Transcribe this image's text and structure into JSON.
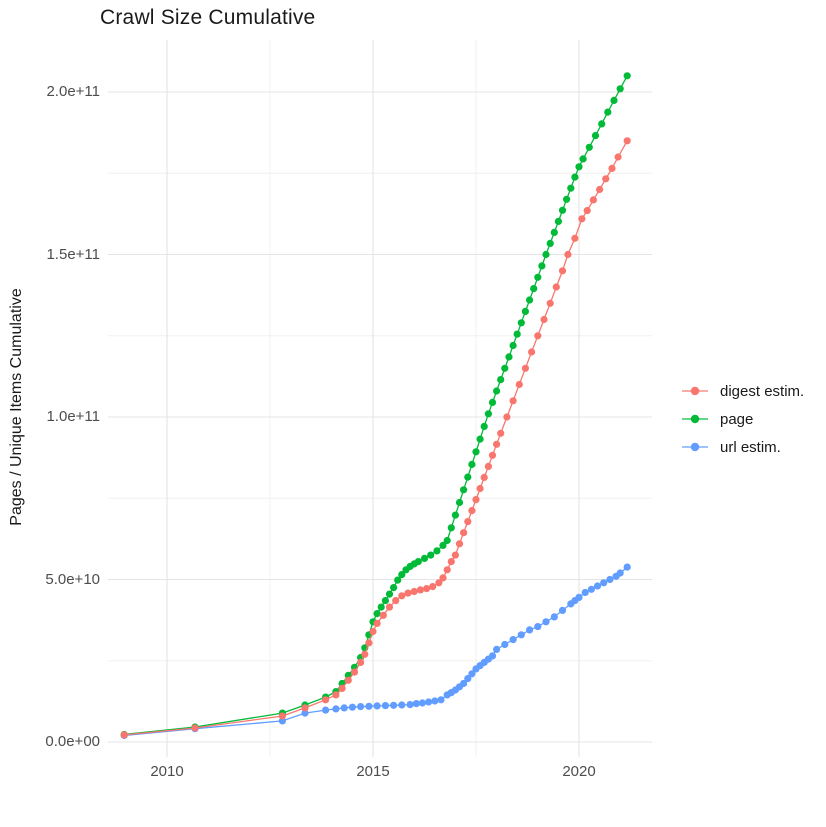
{
  "title": "Crawl Size Cumulative",
  "y_axis": {
    "label": "Pages / Unique Items Cumulative",
    "tick_labels": [
      "0.0e+00",
      "5.0e+10",
      "1.0e+11",
      "1.5e+11",
      "2.0e+11"
    ]
  },
  "x_axis": {
    "tick_labels": [
      "2010",
      "2015",
      "2020"
    ]
  },
  "legend": [
    {
      "label": "digest estim.",
      "color": "#F8766D"
    },
    {
      "label": "page",
      "color": "#00BA38"
    },
    {
      "label": "url estim.",
      "color": "#619CFF"
    }
  ],
  "colors": {
    "digest": "#F8766D",
    "page": "#00BA38",
    "url": "#619CFF",
    "grid_major": "#e4e4e4",
    "grid_minor": "#f0f0f0",
    "tick_text": "#4d4d4d",
    "title_text": "#1a1a1a"
  },
  "chart_data": {
    "type": "scatter",
    "title": "Crawl Size Cumulative",
    "xlabel": "",
    "ylabel": "Pages / Unique Items Cumulative",
    "x_unit": "year",
    "value_scale": "points store [year, items_in_billions]; 1 billion = 1e9",
    "xlim": [
      2008.3,
      2021.8
    ],
    "ylim_billions": [
      -4,
      216
    ],
    "x_ticks": [
      2010,
      2015,
      2020
    ],
    "x_minor_ticks": [
      2012.5,
      2017.5
    ],
    "y_ticks_billions": [
      0,
      50,
      100,
      150,
      200
    ],
    "y_minor_ticks_billions": [
      25,
      75,
      125,
      175
    ],
    "y_tick_labels": [
      "0.0e+00",
      "5.0e+10",
      "1.0e+11",
      "1.5e+11",
      "2.0e+11"
    ],
    "grid": "major+minor",
    "legend_position": "right",
    "draw_order": [
      "url estim.",
      "page",
      "digest estim."
    ],
    "series": [
      {
        "name": "digest estim.",
        "color": "#F8766D",
        "points_year_billions": [
          [
            2008.96,
            2.2
          ],
          [
            2010.68,
            4.3
          ],
          [
            2012.8,
            8.0
          ],
          [
            2013.35,
            10.5
          ],
          [
            2013.85,
            13.0
          ],
          [
            2014.1,
            14.5
          ],
          [
            2014.25,
            16.5
          ],
          [
            2014.4,
            19
          ],
          [
            2014.55,
            21.5
          ],
          [
            2014.7,
            24.5
          ],
          [
            2014.8,
            27
          ],
          [
            2014.9,
            30.5
          ],
          [
            2015.0,
            34
          ],
          [
            2015.1,
            36.5
          ],
          [
            2015.25,
            39
          ],
          [
            2015.4,
            41.5
          ],
          [
            2015.55,
            43.5
          ],
          [
            2015.7,
            45
          ],
          [
            2015.85,
            45.8
          ],
          [
            2016.0,
            46.3
          ],
          [
            2016.15,
            46.8
          ],
          [
            2016.3,
            47.2
          ],
          [
            2016.45,
            47.8
          ],
          [
            2016.6,
            49
          ],
          [
            2016.7,
            50.5
          ],
          [
            2016.8,
            53
          ],
          [
            2016.9,
            55.5
          ],
          [
            2017.0,
            57.5
          ],
          [
            2017.1,
            61
          ],
          [
            2017.2,
            64.4
          ],
          [
            2017.3,
            67.8
          ],
          [
            2017.4,
            71.2
          ],
          [
            2017.5,
            74.6
          ],
          [
            2017.6,
            78
          ],
          [
            2017.7,
            81.4
          ],
          [
            2017.8,
            84.8
          ],
          [
            2017.9,
            88.2
          ],
          [
            2018.0,
            91.6
          ],
          [
            2018.1,
            95
          ],
          [
            2018.25,
            100
          ],
          [
            2018.4,
            105
          ],
          [
            2018.55,
            110
          ],
          [
            2018.7,
            115
          ],
          [
            2018.85,
            120
          ],
          [
            2019.0,
            125
          ],
          [
            2019.15,
            130
          ],
          [
            2019.3,
            135
          ],
          [
            2019.45,
            140
          ],
          [
            2019.6,
            145
          ],
          [
            2019.73,
            150
          ],
          [
            2019.9,
            155
          ],
          [
            2020.07,
            161
          ],
          [
            2020.2,
            163.5
          ],
          [
            2020.35,
            166.8
          ],
          [
            2020.5,
            170
          ],
          [
            2020.65,
            173.3
          ],
          [
            2020.8,
            176.5
          ],
          [
            2020.95,
            180
          ],
          [
            2021.17,
            185
          ]
        ]
      },
      {
        "name": "page",
        "color": "#00BA38",
        "points_year_billions": [
          [
            2008.96,
            2.3
          ],
          [
            2010.68,
            4.6
          ],
          [
            2012.8,
            8.9
          ],
          [
            2013.35,
            11.4
          ],
          [
            2013.85,
            13.8
          ],
          [
            2014.1,
            15.5
          ],
          [
            2014.25,
            18
          ],
          [
            2014.4,
            20.5
          ],
          [
            2014.55,
            23
          ],
          [
            2014.7,
            26
          ],
          [
            2014.8,
            29
          ],
          [
            2014.9,
            33
          ],
          [
            2015.0,
            37
          ],
          [
            2015.1,
            39.5
          ],
          [
            2015.2,
            41.5
          ],
          [
            2015.3,
            43.5
          ],
          [
            2015.4,
            45.5
          ],
          [
            2015.5,
            47.5
          ],
          [
            2015.6,
            49.8
          ],
          [
            2015.7,
            51.5
          ],
          [
            2015.8,
            53
          ],
          [
            2015.9,
            54
          ],
          [
            2016.0,
            54.8
          ],
          [
            2016.1,
            55.5
          ],
          [
            2016.25,
            56.5
          ],
          [
            2016.4,
            57.5
          ],
          [
            2016.55,
            58.8
          ],
          [
            2016.7,
            60.5
          ],
          [
            2016.8,
            62
          ],
          [
            2016.9,
            65.9
          ],
          [
            2017.0,
            69.8
          ],
          [
            2017.1,
            73.7
          ],
          [
            2017.2,
            77.6
          ],
          [
            2017.3,
            81.5
          ],
          [
            2017.4,
            85.4
          ],
          [
            2017.5,
            89.3
          ],
          [
            2017.6,
            93.2
          ],
          [
            2017.7,
            97.1
          ],
          [
            2017.8,
            101
          ],
          [
            2017.9,
            104.5
          ],
          [
            2018.0,
            108
          ],
          [
            2018.1,
            111.5
          ],
          [
            2018.2,
            115
          ],
          [
            2018.3,
            118.5
          ],
          [
            2018.4,
            122
          ],
          [
            2018.5,
            125.5
          ],
          [
            2018.6,
            129
          ],
          [
            2018.7,
            132.5
          ],
          [
            2018.8,
            136
          ],
          [
            2018.9,
            139.5
          ],
          [
            2019.0,
            143
          ],
          [
            2019.1,
            146.5
          ],
          [
            2019.2,
            150
          ],
          [
            2019.3,
            153.4
          ],
          [
            2019.4,
            156.8
          ],
          [
            2019.5,
            160.2
          ],
          [
            2019.6,
            163.6
          ],
          [
            2019.7,
            167
          ],
          [
            2019.8,
            170.4
          ],
          [
            2019.9,
            173.8
          ],
          [
            2020.0,
            177
          ],
          [
            2020.1,
            179.4
          ],
          [
            2020.25,
            183
          ],
          [
            2020.4,
            186.6
          ],
          [
            2020.55,
            190.2
          ],
          [
            2020.7,
            193.8
          ],
          [
            2020.85,
            197.4
          ],
          [
            2021.0,
            201
          ],
          [
            2021.17,
            205
          ]
        ]
      },
      {
        "name": "url estim.",
        "color": "#619CFF",
        "points_year_billions": [
          [
            2008.96,
            2.0
          ],
          [
            2010.68,
            4.1
          ],
          [
            2012.8,
            6.5
          ],
          [
            2013.35,
            8.9
          ],
          [
            2013.85,
            9.8
          ],
          [
            2014.1,
            10.2
          ],
          [
            2014.3,
            10.5
          ],
          [
            2014.5,
            10.7
          ],
          [
            2014.7,
            10.9
          ],
          [
            2014.9,
            11.0
          ],
          [
            2015.1,
            11.1
          ],
          [
            2015.3,
            11.2
          ],
          [
            2015.5,
            11.3
          ],
          [
            2015.7,
            11.4
          ],
          [
            2015.9,
            11.5
          ],
          [
            2016.05,
            11.8
          ],
          [
            2016.2,
            12.0
          ],
          [
            2016.35,
            12.3
          ],
          [
            2016.5,
            12.6
          ],
          [
            2016.65,
            13.0
          ],
          [
            2016.8,
            14.5
          ],
          [
            2016.9,
            15.2
          ],
          [
            2017.0,
            16
          ],
          [
            2017.1,
            17
          ],
          [
            2017.2,
            18
          ],
          [
            2017.3,
            19.5
          ],
          [
            2017.4,
            21
          ],
          [
            2017.5,
            22.5
          ],
          [
            2017.6,
            23.5
          ],
          [
            2017.7,
            24.5
          ],
          [
            2017.8,
            25.5
          ],
          [
            2017.9,
            26.5
          ],
          [
            2018.0,
            28.5
          ],
          [
            2018.2,
            30
          ],
          [
            2018.4,
            31.5
          ],
          [
            2018.6,
            33
          ],
          [
            2018.8,
            34.5
          ],
          [
            2019.0,
            35.5
          ],
          [
            2019.2,
            37
          ],
          [
            2019.4,
            38.5
          ],
          [
            2019.6,
            40.5
          ],
          [
            2019.8,
            42.5
          ],
          [
            2019.9,
            43.5
          ],
          [
            2020.0,
            44.5
          ],
          [
            2020.15,
            46
          ],
          [
            2020.3,
            47
          ],
          [
            2020.45,
            48
          ],
          [
            2020.6,
            49
          ],
          [
            2020.75,
            50
          ],
          [
            2020.9,
            51
          ],
          [
            2021.0,
            52
          ],
          [
            2021.17,
            53.8
          ]
        ]
      }
    ]
  }
}
